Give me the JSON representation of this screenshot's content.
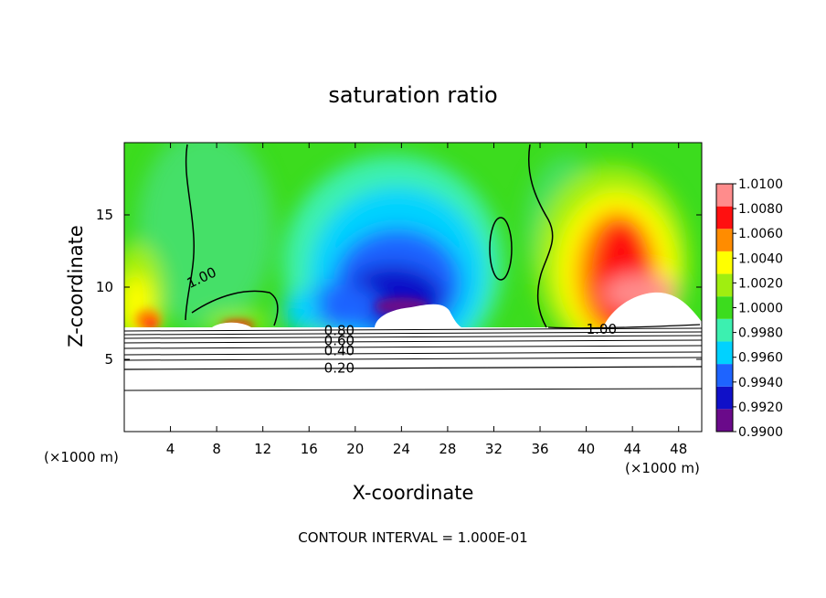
{
  "chart_data": {
    "type": "heatmap",
    "title": "saturation ratio",
    "xlabel": "X-coordinate",
    "ylabel": "Z-coordinate",
    "x_unit_left": "(×1000 m)",
    "x_unit_right": "(×1000 m)",
    "xlim": [
      0,
      50
    ],
    "ylim": [
      0,
      20
    ],
    "x_ticks": [
      4,
      8,
      12,
      16,
      20,
      24,
      28,
      32,
      36,
      40,
      44,
      48
    ],
    "y_ticks": [
      5,
      10,
      15
    ],
    "colorbar": {
      "levels": [
        0.99,
        0.992,
        0.994,
        0.996,
        0.998,
        1.0,
        1.002,
        1.004,
        1.006,
        1.008,
        1.01
      ],
      "labels": [
        "0.9900",
        "0.9920",
        "0.9940",
        "0.9960",
        "0.9980",
        "1.0000",
        "1.0020",
        "1.0040",
        "1.0060",
        "1.0080",
        "1.0100"
      ],
      "colors": [
        "#6a0a8a",
        "#1010c8",
        "#1e64ff",
        "#00d2ff",
        "#3cf0b0",
        "#3cdc1e",
        "#a0ee10",
        "#ffff00",
        "#ff8c00",
        "#ff1010",
        "#ff8c8c"
      ]
    },
    "contour_labels": [
      {
        "text": "1.00",
        "x": 5.5,
        "y": 10.2
      },
      {
        "text": "1.00",
        "x": 40,
        "y": 7.1
      },
      {
        "text": "0.80",
        "x": 17.3,
        "y": 7.0
      },
      {
        "text": "0.60",
        "x": 17.3,
        "y": 6.3
      },
      {
        "text": "0.40",
        "x": 17.3,
        "y": 5.6
      },
      {
        "text": "0.20",
        "x": 17.3,
        "y": 4.4
      }
    ],
    "contour_interval_text": "CONTOUR INTERVAL = 1.000E-01"
  }
}
